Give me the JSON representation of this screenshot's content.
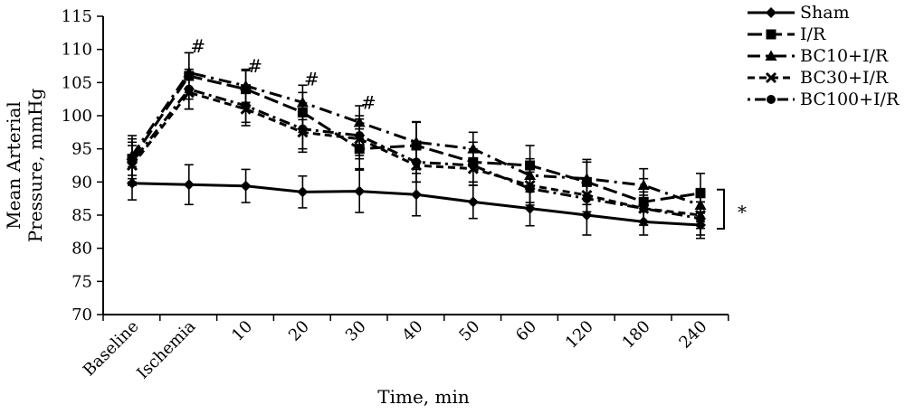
{
  "chart_data": {
    "type": "line",
    "title": "",
    "xlabel": "Time, min",
    "ylabel": [
      "Mean Arterial",
      "Pressure, mmHg"
    ],
    "ylim": [
      70,
      115
    ],
    "yticks": [
      70,
      75,
      80,
      85,
      90,
      95,
      100,
      105,
      110,
      115
    ],
    "categories": [
      "Baseline",
      "Ischemia",
      "10",
      "20",
      "30",
      "40",
      "50",
      "60",
      "120",
      "180",
      "240"
    ],
    "grid": false,
    "legend_position": "top-right",
    "series": [
      {
        "name": "Sham",
        "marker": "diamond",
        "dash": "solid",
        "color": "#000000",
        "values": [
          89.8,
          89.6,
          89.4,
          88.5,
          88.6,
          88.1,
          87.0,
          86.0,
          85.0,
          84.0,
          83.5
        ],
        "errors": [
          2.5,
          3.0,
          2.5,
          2.4,
          3.2,
          3.2,
          2.5,
          2.6,
          3.0,
          2.0,
          2.0
        ]
      },
      {
        "name": "I/R",
        "marker": "square",
        "dash": "long",
        "color": "#000000",
        "values": [
          93.5,
          106.0,
          104.0,
          100.5,
          95.0,
          95.5,
          93.0,
          92.5,
          90.0,
          87.0,
          88.3
        ],
        "errors": [
          3.0,
          3.5,
          2.8,
          3.0,
          3.0,
          3.6,
          3.0,
          3.0,
          3.4,
          3.5,
          3.0
        ]
      },
      {
        "name": "BC10+I/R",
        "marker": "triangle",
        "dash": "dashdot",
        "color": "#000000",
        "values": [
          94.0,
          106.5,
          104.5,
          102.0,
          99.0,
          96.0,
          95.0,
          91.0,
          90.5,
          89.5,
          86.5
        ],
        "errors": [
          3.0,
          3.0,
          2.5,
          2.6,
          2.5,
          3.0,
          2.5,
          2.5,
          2.5,
          2.5,
          2.5
        ]
      },
      {
        "name": "BC30+I/R",
        "marker": "x",
        "dash": "dashed",
        "color": "#000000",
        "values": [
          92.5,
          103.5,
          101.0,
          97.5,
          96.5,
          92.5,
          92.0,
          89.5,
          88.0,
          86.0,
          85.0
        ],
        "errors": [
          3.0,
          2.5,
          2.5,
          3.0,
          3.0,
          2.5,
          2.5,
          2.6,
          2.5,
          2.0,
          2.0
        ]
      },
      {
        "name": "BC100+I/R",
        "marker": "circle",
        "dash": "dotdash",
        "color": "#000000",
        "values": [
          93.0,
          104.0,
          101.5,
          98.0,
          97.0,
          93.0,
          92.5,
          89.0,
          87.5,
          86.0,
          84.5
        ],
        "errors": [
          3.0,
          3.0,
          2.5,
          3.0,
          3.0,
          3.0,
          2.5,
          2.5,
          2.5,
          2.5,
          2.5
        ]
      }
    ],
    "annotations": [
      {
        "text": "#",
        "category": "Ischemia",
        "y": 110.5
      },
      {
        "text": "#",
        "category": "10",
        "y": 107.5
      },
      {
        "text": "#",
        "category": "20",
        "y": 105.5
      },
      {
        "text": "#",
        "category": "30",
        "y": 102.0
      }
    ],
    "significance": {
      "text": "*",
      "from": 88.3,
      "to": 83.5
    }
  }
}
